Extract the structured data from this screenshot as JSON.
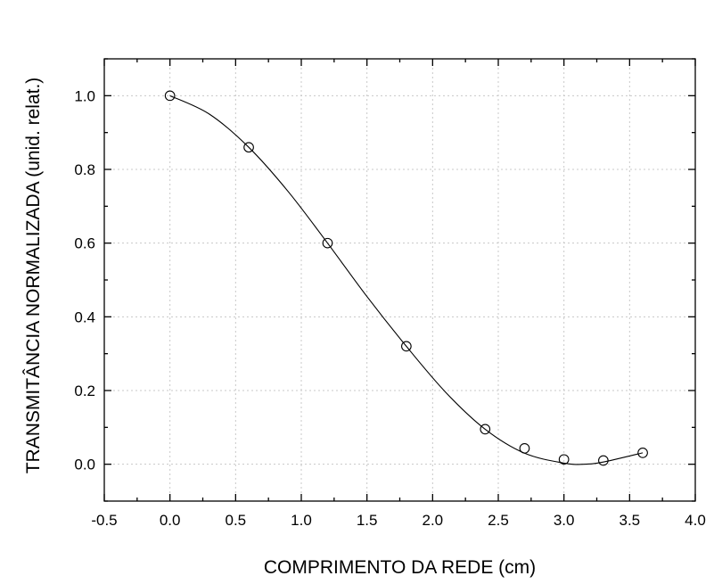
{
  "chart_data": {
    "type": "scatter",
    "xlabel": "COMPRIMENTO DA REDE (cm)",
    "ylabel": "TRANSMITÂNCIA NORMALIZADA (unid. relat.)",
    "xlim": [
      -0.5,
      4.0
    ],
    "ylim": [
      -0.1,
      1.1
    ],
    "x_ticks": [
      -0.5,
      0.0,
      0.5,
      1.0,
      1.5,
      2.0,
      2.5,
      3.0,
      3.5,
      4.0
    ],
    "x_tick_labels": [
      "-0.5",
      "0.0",
      "0.5",
      "1.0",
      "1.5",
      "2.0",
      "2.5",
      "3.0",
      "3.5",
      "4.0"
    ],
    "y_ticks": [
      0.0,
      0.2,
      0.4,
      0.6,
      0.8,
      1.0
    ],
    "y_tick_labels": [
      "0.0",
      "0.2",
      "0.4",
      "0.6",
      "0.8",
      "1.0"
    ],
    "grid": true,
    "series": [
      {
        "marker": "open-circle",
        "x": [
          0.0,
          0.6,
          1.2,
          1.8,
          2.4,
          2.7,
          3.0,
          3.3,
          3.6
        ],
        "y": [
          1.0,
          0.86,
          0.6,
          0.32,
          0.095,
          0.043,
          0.013,
          0.01,
          0.031
        ]
      },
      {
        "style": "line",
        "x": [
          0.0,
          0.3,
          0.6,
          0.9,
          1.2,
          1.5,
          1.8,
          2.1,
          2.4,
          2.7,
          3.0,
          3.15,
          3.3,
          3.6
        ],
        "y": [
          1.0,
          0.95,
          0.86,
          0.74,
          0.6,
          0.455,
          0.32,
          0.195,
          0.095,
          0.03,
          0.003,
          0.0,
          0.006,
          0.031
        ]
      }
    ]
  }
}
